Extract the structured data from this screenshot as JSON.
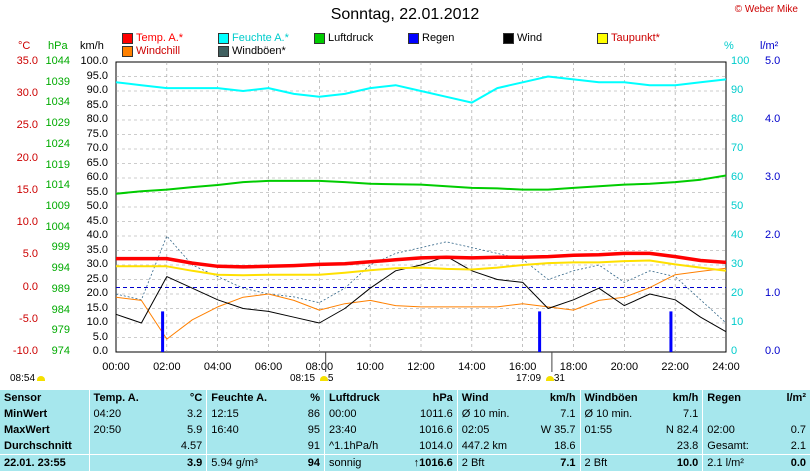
{
  "title": "Sonntag, 22.01.2012",
  "copyright": "© Weber Mike",
  "legend": [
    {
      "label": "Temp. A.*",
      "color": "#ff0000"
    },
    {
      "label": "Feuchte A.*",
      "color": "#00ffff"
    },
    {
      "label": "Luftdruck",
      "color": "#00cc00"
    },
    {
      "label": "Regen",
      "color": "#0000ff"
    },
    {
      "label": "Wind",
      "color": "#000000"
    },
    {
      "label": "Taupunkt*",
      "color": "#ffff00"
    },
    {
      "label": "Windchill",
      "color": "#ff8000"
    },
    {
      "label": "Windböen*",
      "color": "#406060"
    }
  ],
  "axes": {
    "temp_unit": "°C",
    "pressure_unit": "hPa",
    "wind_unit": "km/h",
    "humidity_unit": "%",
    "rain_unit": "l/m²",
    "temp_ticks": [
      "35.0",
      "30.0",
      "25.0",
      "20.0",
      "15.0",
      "10.0",
      "5.0",
      "0.0",
      "-5.0",
      "-10.0"
    ],
    "pressure_ticks": [
      "1044",
      "1039",
      "1034",
      "1029",
      "1024",
      "1019",
      "1014",
      "1009",
      "1004",
      "999",
      "994",
      "989",
      "984",
      "979",
      "974"
    ],
    "wind_ticks": [
      "100.0",
      "95.0",
      "90.0",
      "85.0",
      "80.0",
      "75.0",
      "70.0",
      "65.0",
      "60.0",
      "55.0",
      "50.0",
      "45.0",
      "40.0",
      "35.0",
      "30.0",
      "25.0",
      "20.0",
      "15.0",
      "10.0",
      "5.0",
      "0.0"
    ],
    "humidity_ticks": [
      "100",
      "90",
      "80",
      "70",
      "60",
      "50",
      "40",
      "30",
      "20",
      "10",
      "0"
    ],
    "rain_ticks": [
      "5.0",
      "4.0",
      "3.0",
      "2.0",
      "1.0",
      "0.0"
    ],
    "time_ticks": [
      "00:00",
      "02:00",
      "04:00",
      "06:00",
      "08:00",
      "10:00",
      "12:00",
      "14:00",
      "16:00",
      "18:00",
      "20:00",
      "22:00",
      "24:00"
    ]
  },
  "sun_markers": {
    "sunrise": "08:15",
    "sunrise_extra": "5",
    "sunset": "17:09",
    "sunset_extra": "31",
    "left": "08:54"
  },
  "chart_data": {
    "type": "line",
    "x": [
      "00:00",
      "01:00",
      "02:00",
      "03:00",
      "04:00",
      "05:00",
      "06:00",
      "07:00",
      "08:00",
      "09:00",
      "10:00",
      "11:00",
      "12:00",
      "13:00",
      "14:00",
      "15:00",
      "16:00",
      "17:00",
      "18:00",
      "19:00",
      "20:00",
      "21:00",
      "22:00",
      "23:00",
      "24:00"
    ],
    "xlabel": "",
    "series": [
      {
        "name": "Temp. A.*",
        "axis": "°C",
        "values": [
          4.5,
          4.5,
          4.5,
          3.8,
          3.3,
          3.2,
          3.3,
          3.4,
          3.6,
          3.7,
          4.0,
          4.3,
          4.6,
          4.7,
          4.6,
          4.7,
          4.7,
          4.8,
          5.0,
          5.1,
          5.3,
          5.3,
          4.8,
          4.2,
          3.9
        ]
      },
      {
        "name": "Feuchte A.*",
        "axis": "%",
        "values": [
          93,
          92,
          91,
          91,
          91,
          90,
          91,
          89,
          88,
          89,
          91,
          92,
          90,
          88,
          86,
          91,
          93,
          95,
          94,
          93,
          93,
          92,
          92,
          93,
          94
        ]
      },
      {
        "name": "Luftdruck",
        "axis": "hPa",
        "values": [
          1012.2,
          1012.8,
          1013.2,
          1013.8,
          1014.3,
          1015.0,
          1015.3,
          1015.3,
          1015.3,
          1015.0,
          1014.6,
          1014.5,
          1014.4,
          1014.0,
          1013.6,
          1013.5,
          1013.2,
          1013.2,
          1013.6,
          1014.0,
          1014.4,
          1014.6,
          1015.0,
          1015.6,
          1016.6
        ]
      },
      {
        "name": "Regen",
        "axis": "l/m²",
        "type": "bar",
        "points": [
          {
            "x": "01:50",
            "value": 0.7
          },
          {
            "x": "16:40",
            "value": 0.7
          },
          {
            "x": "21:50",
            "value": 0.7
          }
        ]
      },
      {
        "name": "Wind",
        "axis": "km/h",
        "values": [
          13,
          10,
          26,
          22,
          18,
          15,
          14,
          12,
          10,
          15,
          22,
          28,
          30,
          33,
          28,
          25,
          24,
          15,
          18,
          22,
          16,
          20,
          18,
          12,
          7
        ]
      },
      {
        "name": "Taupunkt*",
        "axis": "°C",
        "values": [
          3.3,
          3.3,
          3.3,
          2.6,
          2.0,
          1.9,
          2.0,
          2.0,
          2.0,
          2.3,
          2.7,
          3.0,
          3.1,
          2.9,
          2.8,
          3.1,
          3.5,
          3.8,
          3.9,
          3.9,
          4.1,
          4.2,
          3.6,
          3.1,
          2.6
        ]
      },
      {
        "name": "Windchill",
        "axis": "°C",
        "values": [
          -1.5,
          -2.0,
          -8.0,
          -5.0,
          -3.0,
          -1.5,
          -1.0,
          -2.0,
          -3.5,
          -2.5,
          -2.0,
          -2.8,
          -3.0,
          -3.0,
          -3.0,
          -3.0,
          -2.5,
          -3.0,
          -3.5,
          -2.0,
          -1.5,
          0.0,
          2.0,
          2.5,
          3.0
        ]
      },
      {
        "name": "Windböen*",
        "axis": "km/h",
        "values": [
          20,
          18,
          40,
          30,
          26,
          22,
          20,
          19,
          17,
          22,
          30,
          34,
          36,
          38,
          36,
          34,
          32,
          25,
          28,
          30,
          24,
          28,
          26,
          18,
          10
        ]
      }
    ]
  },
  "table": {
    "headers": {
      "sensor": "Sensor",
      "temp": "Temp. A.",
      "temp_unit": "°C",
      "hum": "Feuchte A.",
      "hum_unit": "%",
      "press": "Luftdruck",
      "press_unit": "hPa",
      "wind": "Wind",
      "wind_unit": "km/h",
      "gust": "Windböen",
      "gust_unit": "km/h",
      "rain": "Regen",
      "rain_unit": "l/m²"
    },
    "rows": [
      {
        "label": "MinWert",
        "temp_t": "04:20",
        "temp_v": "3.2",
        "hum_t": "12:15",
        "hum_v": "86",
        "press_t": "00:00",
        "press_v": "1011.6",
        "wind_t": "Ø 10 min.",
        "wind_v": "7.1",
        "gust_t": "Ø 10 min.",
        "gust_v": "7.1",
        "rain_t": "",
        "rain_v": ""
      },
      {
        "label": "MaxWert",
        "temp_t": "20:50",
        "temp_v": "5.9",
        "hum_t": "16:40",
        "hum_v": "95",
        "press_t": "23:40",
        "press_v": "1016.6",
        "wind_t": "02:05",
        "wind_v": "W 35.7",
        "gust_t": "01:55",
        "gust_v": "N 82.4",
        "rain_t": "02:00",
        "rain_v": "0.7"
      },
      {
        "label": "Durchschnitt",
        "temp_t": "",
        "temp_v": "4.57",
        "hum_t": "",
        "hum_v": "91",
        "press_t": "^1.1hPa/h",
        "press_v": "1014.0",
        "wind_t": "447.2 km",
        "wind_v": "18.6",
        "gust_t": "",
        "gust_v": "23.8",
        "rain_t": "Gesamt:",
        "rain_v": "2.1"
      }
    ],
    "current": {
      "label": "22.01. 23:55",
      "temp": "3.9",
      "hum_t": "5.94 g/m³",
      "hum_v": "94",
      "press_t": "sonnig",
      "press_v": "↑1016.6",
      "wind_t": "2 Bft",
      "wind_v": "7.1",
      "gust_t": "2 Bft",
      "gust_v": "10.0",
      "rain_t": "2.1 l/m²",
      "rain_v": "0.0"
    }
  }
}
